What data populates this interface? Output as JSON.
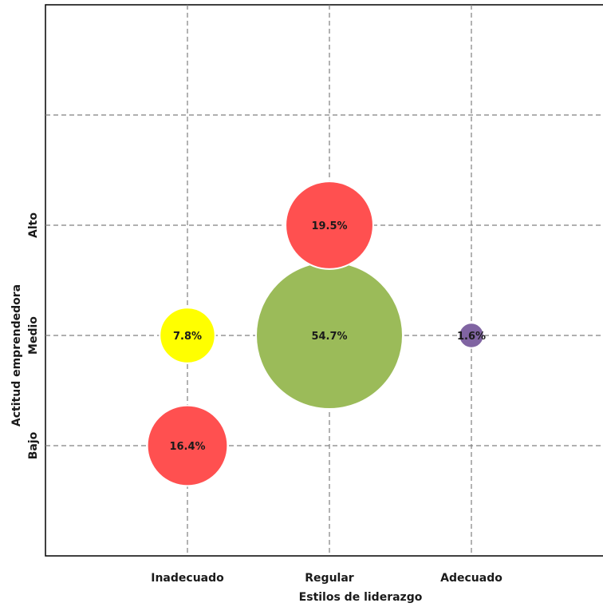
{
  "chart_data": {
    "type": "scatter",
    "subtype": "bubble",
    "xlabel": "Estilos de liderazgo",
    "ylabel": "Actitud emprendedora",
    "x_categories": [
      "Inadecuado",
      "Regular",
      "Adecuado"
    ],
    "y_categories": [
      "Bajo",
      "Medio",
      "Alto"
    ],
    "grid": true,
    "points": [
      {
        "x": "Regular",
        "y": "Alto",
        "value": 19.5,
        "label": "19.5%",
        "color": "#ff5050"
      },
      {
        "x": "Inadecuado",
        "y": "Medio",
        "value": 7.8,
        "label": "7.8%",
        "color": "#ffff00"
      },
      {
        "x": "Regular",
        "y": "Medio",
        "value": 54.7,
        "label": "54.7%",
        "color": "#9bbb59"
      },
      {
        "x": "Adecuado",
        "y": "Medio",
        "value": 1.6,
        "label": "1.6%",
        "color": "#8064a2"
      },
      {
        "x": "Inadecuado",
        "y": "Bajo",
        "value": 16.4,
        "label": "16.4%",
        "color": "#ff5050"
      }
    ]
  }
}
